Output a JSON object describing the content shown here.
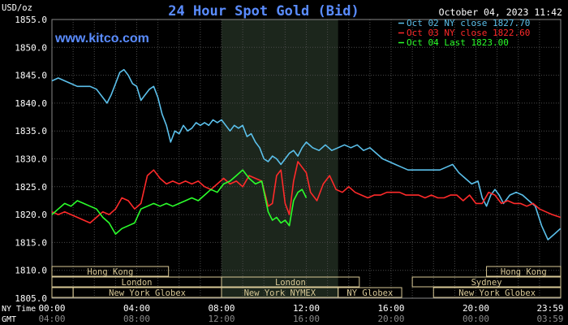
{
  "chart_data": {
    "type": "line",
    "title": "24 Hour Spot Gold (Bid)",
    "watermark": "www.kitco.com",
    "timestamp": "October 04, 2023 11:42",
    "ylabel": "USD/oz",
    "ylim": [
      1805,
      1855
    ],
    "yticks": [
      "1855.0",
      "1850.0",
      "1845.0",
      "1840.0",
      "1835.0",
      "1830.0",
      "1825.0",
      "1820.0",
      "1815.0",
      "1810.0",
      "1805.0"
    ],
    "y_tick_values": [
      1855,
      1850,
      1845,
      1840,
      1835,
      1830,
      1825,
      1820,
      1815,
      1810,
      1805
    ],
    "x_hours": [
      0,
      4,
      8,
      12,
      16,
      20,
      24
    ],
    "ny_time_label": "NY Time",
    "gmt_label": "GMT",
    "ny_time_ticks": [
      "00:00",
      "04:00",
      "08:00",
      "12:00",
      "16:00",
      "20:00",
      "23:59"
    ],
    "gmt_ticks": [
      "04:00",
      "08:00",
      "12:00",
      "16:00",
      "20:00",
      "00:00",
      "03:59"
    ],
    "legend_position": "top-right",
    "shaded_session_hours": [
      8,
      13.5
    ],
    "sessions": [
      {
        "name": "Hong Kong",
        "start": 0,
        "end": 5.5,
        "row": 0
      },
      {
        "name": "Hong Kong",
        "start": 20.5,
        "end": 24,
        "row": 0
      },
      {
        "name": "London",
        "start": 0,
        "end": 8,
        "row": 1
      },
      {
        "name": "London",
        "start": 8,
        "end": 14.5,
        "row": 1
      },
      {
        "name": "Sydney",
        "start": 17,
        "end": 24,
        "row": 1
      },
      {
        "name": "",
        "start": 0,
        "end": 1,
        "row": 2
      },
      {
        "name": "New York Globex",
        "start": 1,
        "end": 8,
        "row": 2
      },
      {
        "name": "New York NYMEX",
        "start": 8,
        "end": 13.5,
        "row": 2
      },
      {
        "name": "NY Globex",
        "start": 13.5,
        "end": 16.5,
        "row": 2
      },
      {
        "name": "New York Globex",
        "start": 18,
        "end": 24,
        "row": 2
      }
    ],
    "series": [
      {
        "name": "Oct 02 NY close 1827.70",
        "color": "#5bc0eb",
        "x": [
          0,
          0.3,
          0.6,
          0.9,
          1.2,
          1.5,
          1.8,
          2.1,
          2.4,
          2.6,
          2.8,
          3.0,
          3.2,
          3.4,
          3.6,
          3.8,
          4.0,
          4.2,
          4.4,
          4.6,
          4.8,
          5.0,
          5.2,
          5.4,
          5.6,
          5.8,
          6.0,
          6.2,
          6.4,
          6.6,
          6.8,
          7.0,
          7.2,
          7.4,
          7.6,
          7.8,
          8.0,
          8.2,
          8.4,
          8.6,
          8.8,
          9.0,
          9.2,
          9.4,
          9.6,
          9.8,
          10.0,
          10.2,
          10.4,
          10.6,
          10.8,
          11.0,
          11.2,
          11.4,
          11.6,
          11.8,
          12.0,
          12.3,
          12.6,
          12.9,
          13.2,
          13.5,
          13.8,
          14.1,
          14.4,
          14.7,
          15.0,
          15.3,
          15.6,
          15.9,
          16.2,
          16.5,
          16.8,
          17.1,
          17.4,
          17.7,
          18.0,
          18.3,
          18.6,
          18.9,
          19.2,
          19.5,
          19.8,
          20.1,
          20.3,
          20.5,
          20.7,
          20.9,
          21.1,
          21.3,
          21.6,
          21.9,
          22.2,
          22.5,
          22.8,
          23.1,
          23.4,
          23.7,
          23.99
        ],
        "values": [
          1844.0,
          1844.5,
          1844.0,
          1843.5,
          1843.0,
          1843.0,
          1843.0,
          1842.5,
          1841.0,
          1840.0,
          1841.5,
          1843.5,
          1845.5,
          1846.0,
          1845.0,
          1843.5,
          1843.0,
          1840.5,
          1841.5,
          1842.5,
          1843.0,
          1841.0,
          1838.0,
          1836.0,
          1833.0,
          1835.0,
          1834.5,
          1836.0,
          1835.0,
          1835.5,
          1836.5,
          1836.0,
          1836.5,
          1836.0,
          1837.0,
          1836.5,
          1837.0,
          1836.0,
          1835.0,
          1836.0,
          1835.5,
          1836.0,
          1834.0,
          1834.5,
          1833.0,
          1832.0,
          1830.0,
          1829.5,
          1830.5,
          1830.0,
          1829.0,
          1830.0,
          1831.0,
          1831.5,
          1830.5,
          1832.0,
          1833.0,
          1832.0,
          1831.5,
          1832.5,
          1831.5,
          1832.0,
          1832.5,
          1832.0,
          1832.5,
          1831.5,
          1832.0,
          1831.0,
          1830.0,
          1829.5,
          1829.0,
          1828.5,
          1828.0,
          1828.0,
          1828.0,
          1828.0,
          1828.0,
          1828.0,
          1828.5,
          1829.0,
          1827.5,
          1826.5,
          1825.5,
          1826.0,
          1823.0,
          1821.5,
          1823.5,
          1824.5,
          1823.5,
          1822.0,
          1823.5,
          1824.0,
          1823.5,
          1822.5,
          1821.5,
          1818.0,
          1815.5,
          1816.5,
          1817.5
        ]
      },
      {
        "name": "Oct 03 NY close 1822.60",
        "color": "#ff2a2a",
        "x": [
          0,
          0.3,
          0.6,
          0.9,
          1.2,
          1.5,
          1.8,
          2.1,
          2.4,
          2.7,
          3.0,
          3.3,
          3.6,
          3.9,
          4.2,
          4.5,
          4.8,
          5.1,
          5.4,
          5.7,
          6.0,
          6.3,
          6.6,
          6.9,
          7.2,
          7.5,
          7.8,
          8.1,
          8.4,
          8.7,
          9.0,
          9.3,
          9.6,
          9.9,
          10.2,
          10.4,
          10.6,
          10.8,
          11.0,
          11.2,
          11.4,
          11.6,
          11.8,
          12.0,
          12.2,
          12.5,
          12.8,
          13.1,
          13.4,
          13.7,
          14.0,
          14.3,
          14.6,
          14.9,
          15.2,
          15.5,
          15.8,
          16.1,
          16.4,
          16.7,
          17.0,
          17.3,
          17.6,
          17.9,
          18.2,
          18.5,
          18.8,
          19.1,
          19.4,
          19.7,
          20.0,
          20.3,
          20.6,
          20.9,
          21.2,
          21.5,
          21.8,
          22.1,
          22.4,
          22.7,
          23.0,
          23.3,
          23.6,
          23.99
        ],
        "values": [
          1820.5,
          1820.0,
          1820.5,
          1820.0,
          1819.5,
          1819.0,
          1818.5,
          1819.5,
          1820.5,
          1820.0,
          1821.0,
          1823.0,
          1822.5,
          1821.0,
          1822.0,
          1827.0,
          1828.0,
          1826.5,
          1825.5,
          1826.0,
          1825.5,
          1826.0,
          1825.5,
          1826.0,
          1825.0,
          1824.5,
          1825.5,
          1826.5,
          1825.5,
          1826.0,
          1825.0,
          1827.0,
          1826.5,
          1826.0,
          1821.5,
          1822.0,
          1827.0,
          1828.0,
          1822.0,
          1820.0,
          1826.0,
          1829.5,
          1828.5,
          1827.5,
          1824.0,
          1822.5,
          1825.5,
          1827.0,
          1824.5,
          1824.0,
          1825.0,
          1824.0,
          1823.5,
          1823.0,
          1823.5,
          1823.5,
          1824.0,
          1824.0,
          1824.0,
          1823.5,
          1823.5,
          1823.5,
          1823.0,
          1823.5,
          1823.0,
          1823.0,
          1823.5,
          1823.5,
          1822.5,
          1823.5,
          1822.0,
          1822.0,
          1824.0,
          1823.5,
          1822.0,
          1822.5,
          1822.0,
          1822.0,
          1821.5,
          1822.0,
          1821.0,
          1820.5,
          1820.0,
          1819.5
        ]
      },
      {
        "name": "Oct 04 Last 1823.00",
        "color": "#2bff2b",
        "x": [
          0,
          0.3,
          0.6,
          0.9,
          1.2,
          1.5,
          1.8,
          2.1,
          2.4,
          2.7,
          3.0,
          3.3,
          3.6,
          3.9,
          4.2,
          4.5,
          4.8,
          5.1,
          5.4,
          5.7,
          6.0,
          6.3,
          6.6,
          6.9,
          7.2,
          7.5,
          7.8,
          8.1,
          8.4,
          8.7,
          9.0,
          9.3,
          9.6,
          9.9,
          10.2,
          10.4,
          10.6,
          10.8,
          11.0,
          11.2,
          11.4,
          11.6,
          11.8,
          12.0
        ],
        "values": [
          1820.0,
          1821.0,
          1822.0,
          1821.5,
          1822.5,
          1822.0,
          1821.5,
          1821.0,
          1819.5,
          1818.5,
          1816.5,
          1817.5,
          1818.0,
          1818.5,
          1821.0,
          1821.5,
          1822.0,
          1821.5,
          1822.0,
          1821.5,
          1822.0,
          1822.5,
          1823.0,
          1822.5,
          1823.5,
          1824.5,
          1824.0,
          1825.5,
          1826.0,
          1827.0,
          1828.0,
          1826.5,
          1825.5,
          1826.0,
          1820.5,
          1819.0,
          1819.5,
          1818.5,
          1819.0,
          1818.0,
          1822.5,
          1824.0,
          1824.5,
          1823.0
        ]
      }
    ]
  }
}
